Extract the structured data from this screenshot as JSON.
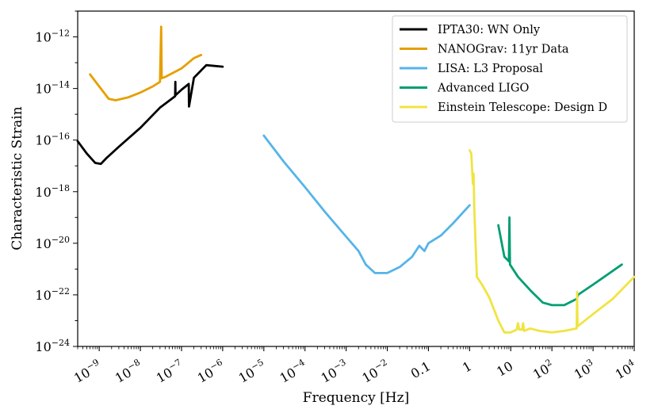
{
  "chart_data": {
    "type": "line",
    "title": "",
    "xlabel": "Frequency [Hz]",
    "ylabel": "Characteristic Strain",
    "xscale": "log",
    "yscale": "log",
    "xlim": [
      3e-10,
      10000
    ],
    "ylim": [
      1e-24,
      1e-11
    ],
    "grid": false,
    "legend_position": "top-right",
    "x_ticks": [
      {
        "value": 1e-09,
        "base": "10",
        "exp": "−9"
      },
      {
        "value": 1e-08,
        "base": "10",
        "exp": "−8"
      },
      {
        "value": 1e-07,
        "base": "10",
        "exp": "−7"
      },
      {
        "value": 1e-06,
        "base": "10",
        "exp": "−6"
      },
      {
        "value": 1e-05,
        "base": "10",
        "exp": "−5"
      },
      {
        "value": 0.0001,
        "base": "10",
        "exp": "−4"
      },
      {
        "value": 0.001,
        "base": "10",
        "exp": "−3"
      },
      {
        "value": 0.01,
        "base": "10",
        "exp": "−2"
      },
      {
        "value": 0.1,
        "base": "0.1",
        "exp": ""
      },
      {
        "value": 1,
        "base": "1",
        "exp": ""
      },
      {
        "value": 10,
        "base": "10",
        "exp": ""
      },
      {
        "value": 100,
        "base": "10",
        "exp": "2"
      },
      {
        "value": 1000,
        "base": "10",
        "exp": "3"
      },
      {
        "value": 10000,
        "base": "10",
        "exp": "4"
      }
    ],
    "y_ticks": [
      {
        "value": 1e-24,
        "base": "10",
        "exp": "−24"
      },
      {
        "value": 1e-22,
        "base": "10",
        "exp": "−22"
      },
      {
        "value": 1e-20,
        "base": "10",
        "exp": "−20"
      },
      {
        "value": 1e-18,
        "base": "10",
        "exp": "−18"
      },
      {
        "value": 1e-16,
        "base": "10",
        "exp": "−16"
      },
      {
        "value": 1e-14,
        "base": "10",
        "exp": "−14"
      },
      {
        "value": 1e-12,
        "base": "10",
        "exp": "−12"
      }
    ],
    "series": [
      {
        "name": "IPTA30: WN Only",
        "color": "#000000",
        "points": [
          [
            3e-10,
            9e-17
          ],
          [
            5e-10,
            3e-17
          ],
          [
            8e-10,
            1.3e-17
          ],
          [
            1.1e-09,
            1.2e-17
          ],
          [
            1.5e-09,
            2e-17
          ],
          [
            3e-09,
            5.5e-17
          ],
          [
            1e-08,
            3e-16
          ],
          [
            3e-08,
            1.8e-15
          ],
          [
            7e-08,
            5e-15
          ],
          [
            7.1e-08,
            1.8e-14
          ],
          [
            7.15e-08,
            5.5e-15
          ],
          [
            1e-07,
            9e-15
          ],
          [
            1.5e-07,
            1.5e-14
          ],
          [
            1.52e-07,
            2e-15
          ],
          [
            2e-07,
            2.6e-14
          ],
          [
            4e-07,
            8e-14
          ],
          [
            1e-06,
            7e-14
          ]
        ],
        "note": "log-log approximately linear rise; values approximate"
      },
      {
        "name": "NANOGrav: 11yr Data",
        "color": "#e69f00",
        "points": [
          [
            6e-10,
            3.5e-14
          ],
          [
            1e-09,
            1.2e-14
          ],
          [
            1.7e-09,
            4e-15
          ],
          [
            2.5e-09,
            3.5e-15
          ],
          [
            5e-09,
            4.5e-15
          ],
          [
            1e-08,
            7e-15
          ],
          [
            2e-08,
            1.2e-14
          ],
          [
            3e-08,
            1.8e-14
          ],
          [
            3.2e-08,
            2.5e-12
          ],
          [
            3.3e-08,
            2.5e-14
          ],
          [
            4e-08,
            2.8e-14
          ],
          [
            1e-07,
            6e-14
          ],
          [
            2e-07,
            1.5e-13
          ],
          [
            3e-07,
            2e-13
          ]
        ]
      },
      {
        "name": "LISA: L3 Proposal",
        "color": "#56b4e9",
        "points": [
          [
            1e-05,
            1.5e-16
          ],
          [
            3e-05,
            1.5e-17
          ],
          [
            0.0001,
            1.5e-18
          ],
          [
            0.0003,
            1.7e-19
          ],
          [
            0.001,
            1.8e-20
          ],
          [
            0.002,
            5e-21
          ],
          [
            0.003,
            1.5e-21
          ],
          [
            0.005,
            7e-22
          ],
          [
            0.01,
            7e-22
          ],
          [
            0.02,
            1.2e-21
          ],
          [
            0.04,
            3e-21
          ],
          [
            0.06,
            8e-21
          ],
          [
            0.08,
            5e-21
          ],
          [
            0.1,
            1e-20
          ],
          [
            0.2,
            2e-20
          ],
          [
            0.4,
            6e-20
          ],
          [
            1,
            3e-19
          ]
        ]
      },
      {
        "name": "Advanced LIGO",
        "color": "#009e73",
        "points": [
          [
            5,
            5e-20
          ],
          [
            7,
            3e-21
          ],
          [
            9,
            2e-21
          ],
          [
            9.3,
            1e-19
          ],
          [
            9.6,
            1.5e-21
          ],
          [
            15,
            5e-22
          ],
          [
            30,
            1.5e-22
          ],
          [
            60,
            5e-23
          ],
          [
            100,
            4e-23
          ],
          [
            200,
            4e-23
          ],
          [
            400,
            7e-23
          ],
          [
            430,
            1e-22
          ],
          [
            1000,
            2.5e-22
          ],
          [
            5000,
            1.5e-21
          ]
        ]
      },
      {
        "name": "Einstein Telescope: Design D",
        "color": "#f0e442",
        "points": [
          [
            1,
            4e-17
          ],
          [
            1.1,
            3e-17
          ],
          [
            1.2,
            2e-18
          ],
          [
            1.25,
            5e-18
          ],
          [
            1.3,
            2e-19
          ],
          [
            1.5,
            5e-22
          ],
          [
            2,
            2.5e-22
          ],
          [
            3,
            8e-23
          ],
          [
            5,
            1e-23
          ],
          [
            7,
            3.5e-24
          ],
          [
            10,
            3.5e-24
          ],
          [
            14,
            4.5e-24
          ],
          [
            15,
            8e-24
          ],
          [
            16,
            4.5e-24
          ],
          [
            19,
            4.5e-24
          ],
          [
            20,
            8e-24
          ],
          [
            21,
            4e-24
          ],
          [
            30,
            5e-24
          ],
          [
            50,
            4e-24
          ],
          [
            100,
            3.5e-24
          ],
          [
            200,
            4e-24
          ],
          [
            400,
            5e-24
          ],
          [
            410,
            1.3e-22
          ],
          [
            420,
            6e-24
          ],
          [
            1000,
            1.8e-23
          ],
          [
            3000,
            7e-23
          ],
          [
            10000,
            5e-22
          ]
        ]
      }
    ]
  }
}
